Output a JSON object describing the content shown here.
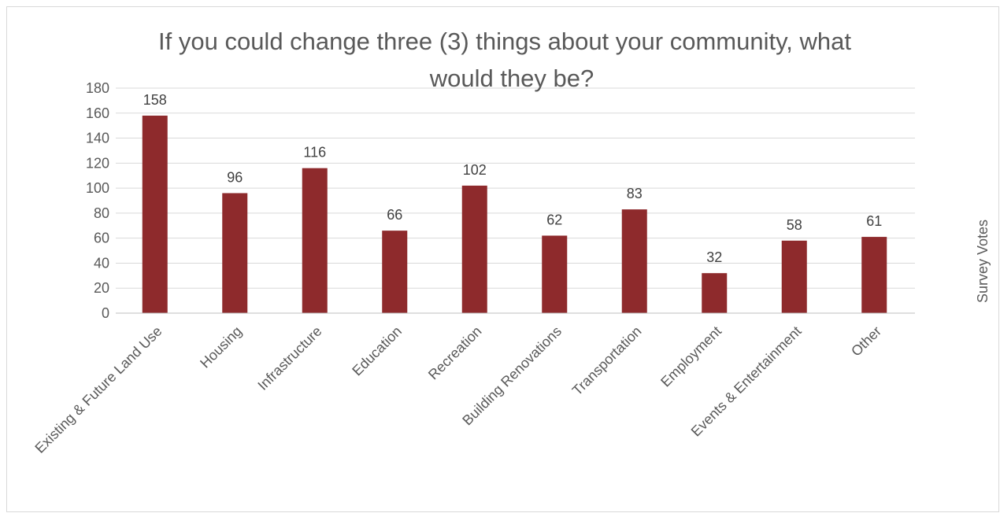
{
  "chart_data": {
    "type": "bar",
    "title_lines": [
      "If you could change three (3) things about your community, what",
      "would they be?"
    ],
    "ylabel": "Survey Votes",
    "xlabel": "",
    "ylim": [
      0,
      180
    ],
    "yticks": [
      "0",
      "20",
      "40",
      "60",
      "80",
      "100",
      "120",
      "140",
      "160",
      "180"
    ],
    "grid": true,
    "legend": "none",
    "categories": [
      "Existing & Future Land Use",
      "Housing",
      "Infrastructure",
      "Education",
      "Recreation",
      "Building Renovations",
      "Transportation",
      "Employment",
      "Events & Entertainment",
      "Other"
    ],
    "values": [
      158,
      96,
      116,
      66,
      102,
      62,
      83,
      32,
      58,
      61
    ],
    "data_labels": [
      "158",
      "96",
      "116",
      "66",
      "102",
      "62",
      "83",
      "32",
      "58",
      "61"
    ],
    "bar_color": "#8e2a2c"
  }
}
